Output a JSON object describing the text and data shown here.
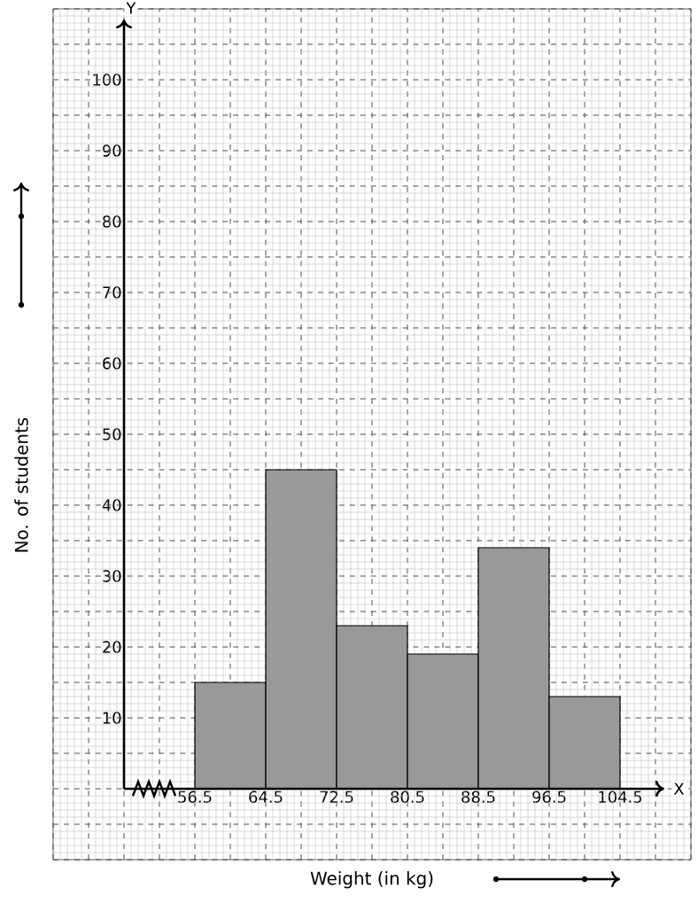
{
  "chart_data": {
    "type": "histogram",
    "xlabel": "Weight (in kg)",
    "ylabel": "No. of students",
    "bins": [
      56.5,
      64.5,
      72.5,
      80.5,
      88.5,
      96.5,
      104.5
    ],
    "values": [
      15,
      45,
      23,
      19,
      34,
      13
    ],
    "color": "#999999",
    "xlim": [
      40.5,
      112.5
    ],
    "ylim": [
      -10,
      110
    ],
    "xticks": [
      56.5,
      64.5,
      72.5,
      80.5,
      88.5,
      96.5,
      104.5
    ],
    "yticks": [
      10,
      20,
      30,
      40,
      50,
      60,
      70,
      80,
      90,
      100
    ],
    "grid": true,
    "annotations": [
      "X",
      "Y"
    ]
  }
}
